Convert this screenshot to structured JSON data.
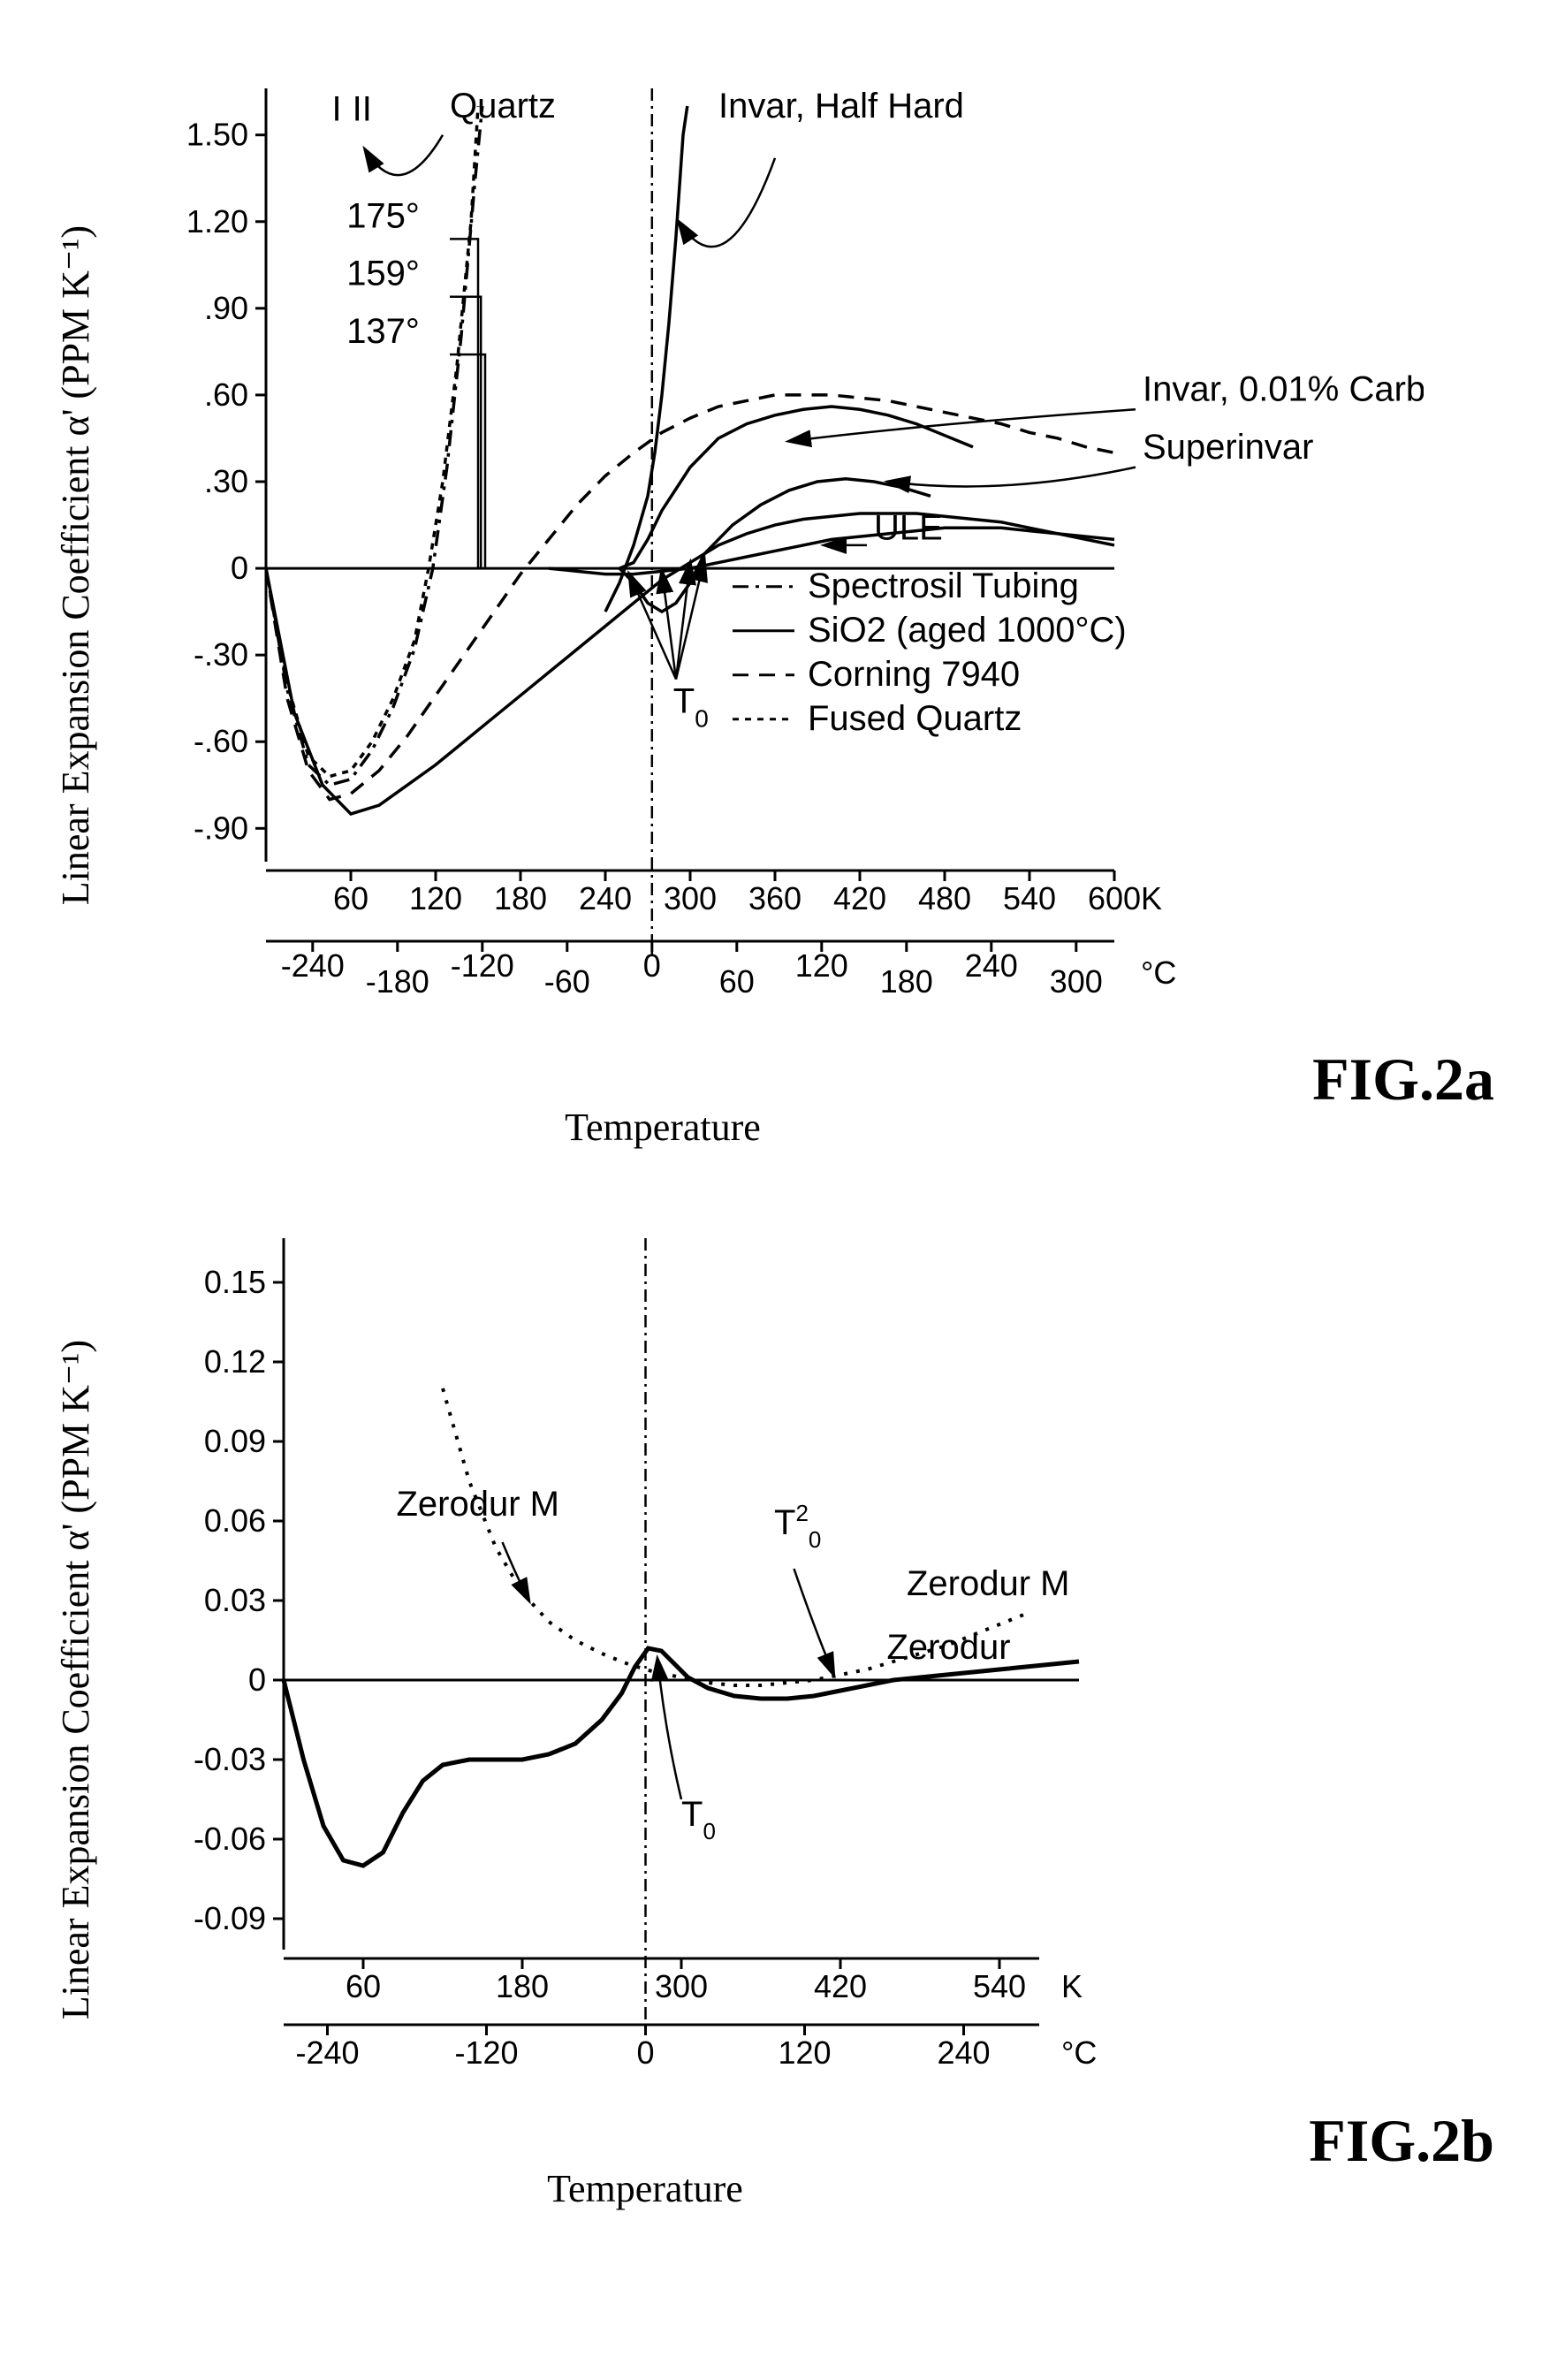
{
  "chart_a": {
    "type": "line",
    "ylabel": "Linear Expansion Coefficient α' (PPM K⁻¹)",
    "xlabel": "Temperature",
    "caption": "FIG.2a",
    "ylim": [
      -1.0,
      1.6
    ],
    "yticks": [
      -0.9,
      -0.6,
      -0.3,
      0,
      0.3,
      0.6,
      0.9,
      1.2,
      1.5
    ],
    "ytick_labels": [
      "-.90",
      "-.60",
      "-.30",
      "0",
      ".30",
      ".60",
      ".90",
      "1.20",
      "1.50"
    ],
    "x_k_ticks": [
      60,
      120,
      180,
      240,
      300,
      360,
      420,
      480,
      540,
      600
    ],
    "x_k_unit": "K",
    "x_c_ticks": [
      -240,
      -180,
      -120,
      -60,
      0,
      60,
      120,
      180,
      240,
      300
    ],
    "x_c_unit": "°C",
    "vertical_line_x": 273,
    "colors": {
      "axis": "#000000",
      "grid": "#000000",
      "text": "#000000",
      "bg": "#ffffff"
    },
    "line_width_main": 3.5,
    "line_width_annot": 2.5,
    "font_size_tick": 36,
    "font_size_label": 40,
    "font_size_annot": 40,
    "annotations": {
      "quartz": "Quartz",
      "invar_hh": "Invar, Half Hard",
      "invar_c": "Invar, 0.01% Carbon",
      "superinvar": "Superinvar",
      "ule": "ULE",
      "t0": "T₀",
      "angle1": "175°",
      "angle2": "159°",
      "angle3": "137°",
      "axis_marks": [
        "I",
        "II"
      ]
    },
    "legend": [
      {
        "label": "Spectrosil Tubing",
        "style": "dashdot"
      },
      {
        "label": "SiO2 (aged 1000°C)",
        "style": "solid"
      },
      {
        "label": "Corning 7940",
        "style": "longdash"
      },
      {
        "label": "Fused Quartz",
        "style": "shortdash"
      }
    ],
    "series": {
      "sio2_aged": {
        "style": "solid",
        "data": [
          [
            0,
            0
          ],
          [
            20,
            -0.5
          ],
          [
            40,
            -0.75
          ],
          [
            60,
            -0.85
          ],
          [
            80,
            -0.82
          ],
          [
            100,
            -0.75
          ],
          [
            120,
            -0.68
          ],
          [
            140,
            -0.6
          ],
          [
            160,
            -0.52
          ],
          [
            180,
            -0.44
          ],
          [
            200,
            -0.36
          ],
          [
            220,
            -0.28
          ],
          [
            240,
            -0.2
          ],
          [
            260,
            -0.12
          ],
          [
            280,
            -0.04
          ],
          [
            300,
            0.02
          ],
          [
            320,
            0.08
          ],
          [
            340,
            0.12
          ],
          [
            360,
            0.15
          ],
          [
            380,
            0.17
          ],
          [
            400,
            0.18
          ],
          [
            420,
            0.19
          ],
          [
            440,
            0.19
          ],
          [
            460,
            0.19
          ],
          [
            480,
            0.18
          ],
          [
            500,
            0.17
          ],
          [
            520,
            0.16
          ],
          [
            540,
            0.14
          ],
          [
            560,
            0.12
          ],
          [
            580,
            0.1
          ],
          [
            600,
            0.08
          ]
        ]
      },
      "corning": {
        "style": "longdash",
        "data": [
          [
            0,
            0
          ],
          [
            15,
            -0.45
          ],
          [
            30,
            -0.7
          ],
          [
            45,
            -0.8
          ],
          [
            60,
            -0.78
          ],
          [
            80,
            -0.7
          ],
          [
            100,
            -0.58
          ],
          [
            120,
            -0.44
          ],
          [
            140,
            -0.3
          ],
          [
            160,
            -0.16
          ],
          [
            180,
            -0.02
          ],
          [
            200,
            0.1
          ],
          [
            220,
            0.22
          ],
          [
            240,
            0.32
          ],
          [
            260,
            0.4
          ],
          [
            280,
            0.47
          ],
          [
            300,
            0.52
          ],
          [
            320,
            0.56
          ],
          [
            340,
            0.58
          ],
          [
            360,
            0.6
          ],
          [
            380,
            0.6
          ],
          [
            400,
            0.6
          ],
          [
            420,
            0.59
          ],
          [
            440,
            0.58
          ],
          [
            460,
            0.56
          ],
          [
            480,
            0.54
          ],
          [
            500,
            0.52
          ],
          [
            520,
            0.5
          ],
          [
            540,
            0.47
          ],
          [
            560,
            0.45
          ],
          [
            580,
            0.42
          ],
          [
            600,
            0.4
          ]
        ]
      },
      "fused_quartz": {
        "style": "shortdash",
        "data": [
          [
            0,
            0
          ],
          [
            15,
            -0.4
          ],
          [
            30,
            -0.65
          ],
          [
            45,
            -0.72
          ],
          [
            60,
            -0.7
          ],
          [
            75,
            -0.6
          ],
          [
            90,
            -0.45
          ],
          [
            105,
            -0.25
          ],
          [
            115,
            0
          ],
          [
            125,
            0.3
          ],
          [
            135,
            0.7
          ],
          [
            145,
            1.2
          ],
          [
            150,
            1.6
          ]
        ]
      },
      "spectrosil": {
        "style": "dashdot",
        "data": [
          [
            0,
            0
          ],
          [
            15,
            -0.42
          ],
          [
            30,
            -0.68
          ],
          [
            45,
            -0.75
          ],
          [
            60,
            -0.73
          ],
          [
            75,
            -0.63
          ],
          [
            90,
            -0.48
          ],
          [
            105,
            -0.28
          ],
          [
            118,
            0
          ],
          [
            128,
            0.35
          ],
          [
            138,
            0.8
          ],
          [
            148,
            1.35
          ],
          [
            153,
            1.6
          ]
        ]
      },
      "invar_hh": {
        "style": "solid",
        "data": [
          [
            240,
            -0.15
          ],
          [
            250,
            -0.05
          ],
          [
            260,
            0.08
          ],
          [
            270,
            0.25
          ],
          [
            275,
            0.4
          ],
          [
            280,
            0.6
          ],
          [
            285,
            0.85
          ],
          [
            290,
            1.15
          ],
          [
            295,
            1.5
          ],
          [
            298,
            1.6
          ]
        ]
      },
      "invar_c": {
        "style": "solid",
        "data": [
          [
            250,
            0
          ],
          [
            260,
            0.02
          ],
          [
            270,
            0.1
          ],
          [
            280,
            0.2
          ],
          [
            300,
            0.35
          ],
          [
            320,
            0.45
          ],
          [
            340,
            0.5
          ],
          [
            360,
            0.53
          ],
          [
            380,
            0.55
          ],
          [
            400,
            0.56
          ],
          [
            420,
            0.55
          ],
          [
            440,
            0.53
          ],
          [
            460,
            0.5
          ],
          [
            480,
            0.46
          ],
          [
            500,
            0.42
          ]
        ]
      },
      "superinvar": {
        "style": "solid",
        "data": [
          [
            250,
            0
          ],
          [
            260,
            -0.05
          ],
          [
            270,
            -0.12
          ],
          [
            280,
            -0.15
          ],
          [
            290,
            -0.12
          ],
          [
            300,
            -0.05
          ],
          [
            310,
            0.05
          ],
          [
            330,
            0.15
          ],
          [
            350,
            0.22
          ],
          [
            370,
            0.27
          ],
          [
            390,
            0.3
          ],
          [
            410,
            0.31
          ],
          [
            430,
            0.3
          ],
          [
            450,
            0.28
          ],
          [
            470,
            0.25
          ]
        ]
      },
      "ule": {
        "style": "solid",
        "data": [
          [
            200,
            0
          ],
          [
            220,
            -0.01
          ],
          [
            240,
            -0.02
          ],
          [
            260,
            -0.02
          ],
          [
            280,
            -0.01
          ],
          [
            300,
            0
          ],
          [
            320,
            0.02
          ],
          [
            340,
            0.04
          ],
          [
            360,
            0.06
          ],
          [
            380,
            0.08
          ],
          [
            400,
            0.1
          ],
          [
            420,
            0.11
          ],
          [
            440,
            0.12
          ],
          [
            460,
            0.13
          ],
          [
            480,
            0.14
          ],
          [
            500,
            0.14
          ],
          [
            520,
            0.14
          ],
          [
            540,
            0.13
          ],
          [
            560,
            0.12
          ],
          [
            580,
            0.11
          ],
          [
            600,
            0.1
          ]
        ]
      }
    }
  },
  "chart_b": {
    "type": "line",
    "ylabel": "Linear Expansion Coefficient α' (PPM K⁻¹)",
    "xlabel": "Temperature",
    "caption": "FIG.2b",
    "ylim": [
      -0.1,
      0.16
    ],
    "yticks": [
      -0.09,
      -0.06,
      -0.03,
      0,
      0.03,
      0.06,
      0.09,
      0.12,
      0.15
    ],
    "ytick_labels": [
      "-0.09",
      "-0.06",
      "-0.03",
      "0",
      "0.03",
      "0.06",
      "0.09",
      "0.12",
      "0.15"
    ],
    "x_k_ticks": [
      60,
      180,
      300,
      420,
      540
    ],
    "x_k_unit": "K",
    "x_c_ticks": [
      -240,
      -120,
      0,
      120,
      240
    ],
    "x_c_unit": "°C",
    "vertical_line_x": 273,
    "colors": {
      "axis": "#000000",
      "bg": "#ffffff"
    },
    "line_width_main": 4,
    "font_size_tick": 36,
    "font_size_label": 40,
    "font_size_annot": 40,
    "annotations": {
      "zerodur_m_left": "Zerodur M",
      "zerodur_m_right": "Zerodur M",
      "zerodur": "Zerodur",
      "t0": "T₀",
      "t20": "T²₀"
    },
    "series": {
      "zerodur": {
        "style": "solid_thick",
        "data": [
          [
            0,
            0
          ],
          [
            15,
            -0.03
          ],
          [
            30,
            -0.055
          ],
          [
            45,
            -0.068
          ],
          [
            60,
            -0.07
          ],
          [
            75,
            -0.065
          ],
          [
            90,
            -0.05
          ],
          [
            105,
            -0.038
          ],
          [
            120,
            -0.032
          ],
          [
            140,
            -0.03
          ],
          [
            160,
            -0.03
          ],
          [
            180,
            -0.03
          ],
          [
            200,
            -0.028
          ],
          [
            220,
            -0.024
          ],
          [
            240,
            -0.015
          ],
          [
            255,
            -0.005
          ],
          [
            265,
            0.005
          ],
          [
            275,
            0.012
          ],
          [
            285,
            0.011
          ],
          [
            295,
            0.006
          ],
          [
            305,
            0.001
          ],
          [
            320,
            -0.003
          ],
          [
            340,
            -0.006
          ],
          [
            360,
            -0.007
          ],
          [
            380,
            -0.007
          ],
          [
            400,
            -0.006
          ],
          [
            420,
            -0.004
          ],
          [
            440,
            -0.002
          ],
          [
            460,
            0
          ],
          [
            480,
            0.001
          ],
          [
            500,
            0.002
          ],
          [
            520,
            0.003
          ],
          [
            540,
            0.004
          ],
          [
            560,
            0.005
          ],
          [
            580,
            0.006
          ],
          [
            600,
            0.007
          ]
        ]
      },
      "zerodur_m": {
        "style": "dotted",
        "data": [
          [
            120,
            0.11
          ],
          [
            140,
            0.075
          ],
          [
            160,
            0.05
          ],
          [
            180,
            0.033
          ],
          [
            200,
            0.022
          ],
          [
            220,
            0.015
          ],
          [
            240,
            0.01
          ],
          [
            260,
            0.006
          ],
          [
            280,
            0.003
          ],
          [
            300,
            0.001
          ],
          [
            320,
            -0.001
          ],
          [
            340,
            -0.002
          ],
          [
            360,
            -0.002
          ],
          [
            380,
            -0.001
          ],
          [
            400,
            0
          ],
          [
            420,
            0.002
          ],
          [
            440,
            0.004
          ],
          [
            460,
            0.007
          ],
          [
            480,
            0.01
          ],
          [
            500,
            0.013
          ],
          [
            520,
            0.017
          ],
          [
            540,
            0.021
          ],
          [
            560,
            0.025
          ]
        ]
      }
    }
  }
}
